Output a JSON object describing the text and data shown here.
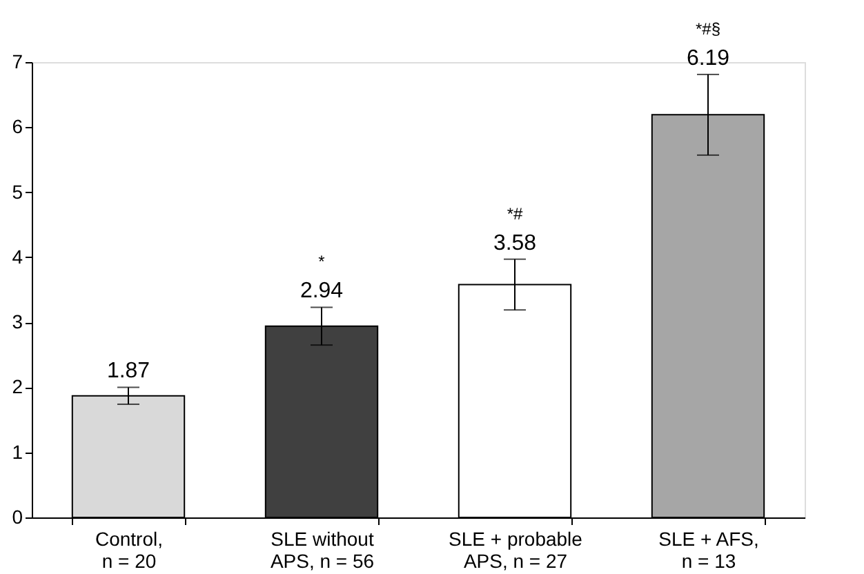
{
  "chart_data": {
    "type": "bar",
    "categories": [
      "Control,\nn = 20",
      "SLE without\nAPS, n = 56",
      "SLE + probable\nAPS, n = 27",
      "SLE + AFS,\nn = 13"
    ],
    "values": [
      1.87,
      2.94,
      3.58,
      6.19
    ],
    "colors": [
      "#d9d9d9",
      "#404040",
      "#ffffff",
      "#a6a6a6"
    ],
    "errors": [
      0.13,
      0.29,
      0.39,
      0.62
    ],
    "data_labels": true,
    "annotations": [
      "*",
      "*#",
      "*#§"
    ],
    "ylim": [
      0,
      7
    ],
    "yticks": [
      0,
      1,
      2,
      3,
      4,
      5,
      6,
      7
    ],
    "grid": false
  }
}
